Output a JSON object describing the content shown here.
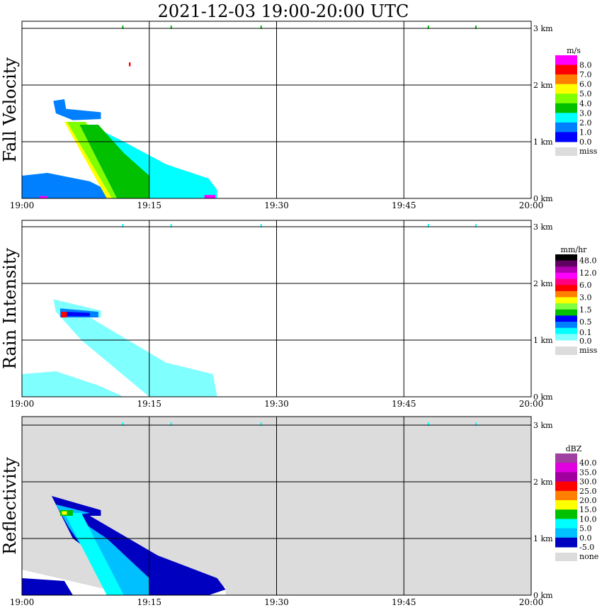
{
  "chart_data": [
    {
      "type": "heatmap",
      "title": "2021-12-03   19:00-20:00 UTC",
      "ylabel": "Fall Velocity",
      "unit": "m/s",
      "x_ticks": [
        "19:00",
        "19:15",
        "19:30",
        "19:45",
        "20:00"
      ],
      "y_ticks": [
        "0 km",
        "1 km",
        "2 km",
        "3 km"
      ],
      "xlim_minutes": [
        0,
        60
      ],
      "ylim_km": [
        0,
        3.1
      ],
      "legend": {
        "labels": [
          "8.0",
          "7.0",
          "6.0",
          "5.0",
          "4.0",
          "3.0",
          "2.0",
          "1.0",
          "0.0"
        ],
        "colors": [
          "#ff00ff",
          "#ff0000",
          "#ff8000",
          "#ffff00",
          "#80ff00",
          "#00c000",
          "#00ffff",
          "#0080ff",
          "#0000ff"
        ],
        "miss_label": "miss",
        "miss_color": "#dcdcdc"
      },
      "background": "#ffffff",
      "regions": [
        {
          "color": "#0080ff",
          "points": [
            [
              0,
              0
            ],
            [
              0,
              0.4
            ],
            [
              3,
              0.45
            ],
            [
              8,
              0.3
            ],
            [
              10,
              0.15
            ],
            [
              12,
              0
            ]
          ]
        },
        {
          "color": "#0080ff",
          "points": [
            [
              3.7,
              1.72
            ],
            [
              5,
              1.75
            ],
            [
              5.2,
              1.58
            ],
            [
              9.3,
              1.52
            ],
            [
              9.3,
              1.4
            ],
            [
              6,
              1.38
            ],
            [
              4,
              1.5
            ]
          ]
        },
        {
          "color": "#00ffff",
          "points": [
            [
              8,
              1.3
            ],
            [
              12,
              1.0
            ],
            [
              17,
              0.6
            ],
            [
              22,
              0.35
            ],
            [
              23,
              0.15
            ],
            [
              23,
              0
            ],
            [
              12,
              0
            ],
            [
              8,
              1.0
            ]
          ]
        },
        {
          "color": "#ffff00",
          "points": [
            [
              5,
              1.35
            ],
            [
              6.5,
              1.35
            ],
            [
              13,
              0
            ],
            [
              10,
              0
            ]
          ]
        },
        {
          "color": "#80ff00",
          "points": [
            [
              5.3,
              1.35
            ],
            [
              7.5,
              1.35
            ],
            [
              13.5,
              0
            ],
            [
              10.6,
              0
            ]
          ]
        },
        {
          "color": "#00c000",
          "points": [
            [
              6.8,
              1.3
            ],
            [
              9,
              1.3
            ],
            [
              12,
              0.8
            ],
            [
              15,
              0.4
            ],
            [
              15,
              0
            ],
            [
              11.2,
              0
            ]
          ]
        },
        {
          "color": "#ff00ff",
          "points": [
            [
              2,
              0
            ],
            [
              3,
              0
            ],
            [
              3,
              0.04
            ],
            [
              2,
              0.04
            ]
          ]
        },
        {
          "color": "#ff00ff",
          "points": [
            [
              21.5,
              0
            ],
            [
              22.8,
              0
            ],
            [
              22.8,
              0.06
            ],
            [
              21.5,
              0.06
            ]
          ]
        },
        {
          "color": "#ff0000",
          "points": [
            [
              12.6,
              2.33
            ],
            [
              12.8,
              2.33
            ],
            [
              12.8,
              2.4
            ],
            [
              12.6,
              2.4
            ]
          ]
        }
      ]
    },
    {
      "type": "heatmap",
      "ylabel": "Rain Intensity",
      "unit": "mm/hr",
      "x_ticks": [
        "19:00",
        "19:15",
        "19:30",
        "19:45",
        "20:00"
      ],
      "y_ticks": [
        "0 km",
        "1 km",
        "2 km",
        "3 km"
      ],
      "xlim_minutes": [
        0,
        60
      ],
      "ylim_km": [
        0,
        3.1
      ],
      "legend": {
        "labels": [
          "48.0",
          "12.0",
          "6.0",
          "3.0",
          "1.5",
          "0.5",
          "0.1",
          "0.0"
        ],
        "colors": [
          "#000000",
          "#600060",
          "#b000b0",
          "#ff00ff",
          "#ff0080",
          "#ff0000",
          "#ff8000",
          "#ffff00",
          "#80ff40",
          "#00c000",
          "#0000ff",
          "#0080ff",
          "#00ffff",
          "#80ffff"
        ],
        "miss_label": "miss",
        "miss_color": "#dcdcdc"
      },
      "background": "#ffffff",
      "regions": [
        {
          "color": "#80ffff",
          "points": [
            [
              0,
              0
            ],
            [
              0,
              0.4
            ],
            [
              4,
              0.45
            ],
            [
              9,
              0.2
            ],
            [
              12,
              0
            ]
          ]
        },
        {
          "color": "#80ffff",
          "points": [
            [
              3.7,
              1.72
            ],
            [
              9.3,
              1.52
            ],
            [
              9.3,
              1.4
            ],
            [
              8,
              1.4
            ],
            [
              17,
              0.6
            ],
            [
              22.5,
              0.4
            ],
            [
              23,
              0
            ],
            [
              15,
              0
            ],
            [
              7,
              1
            ],
            [
              4,
              1.5
            ]
          ]
        },
        {
          "color": "#0080ff",
          "points": [
            [
              4.5,
              1.56
            ],
            [
              9,
              1.5
            ],
            [
              9,
              1.4
            ],
            [
              4.5,
              1.4
            ]
          ]
        },
        {
          "color": "#0000ff",
          "points": [
            [
              5,
              1.5
            ],
            [
              8,
              1.48
            ],
            [
              8,
              1.42
            ],
            [
              5,
              1.42
            ]
          ]
        },
        {
          "color": "#ff0000",
          "points": [
            [
              4.6,
              1.5
            ],
            [
              5.3,
              1.5
            ],
            [
              5.3,
              1.4
            ],
            [
              4.6,
              1.4
            ]
          ]
        }
      ]
    },
    {
      "type": "heatmap",
      "ylabel": "Reflectivity",
      "unit": "dBZ",
      "x_ticks": [
        "19:00",
        "19:15",
        "19:30",
        "19:45",
        "20:00"
      ],
      "y_ticks": [
        "0 km",
        "1 km",
        "2 km",
        "3 km"
      ],
      "xlim_minutes": [
        0,
        60
      ],
      "ylim_km": [
        0,
        3.1
      ],
      "legend": {
        "labels": [
          "40.0",
          "35.0",
          "30.0",
          "25.0",
          "20.0",
          "15.0",
          "10.0",
          "5.0",
          "0.0",
          "-5.0"
        ],
        "colors": [
          "#a040a0",
          "#e000e0",
          "#a000a0",
          "#ff0000",
          "#ff8000",
          "#ffff00",
          "#00c000",
          "#00ffff",
          "#00c0ff",
          "#0000c0"
        ],
        "miss_label": "none",
        "miss_color": "#dcdcdc"
      },
      "background": "#dcdcdc",
      "regions": [
        {
          "color": "#ffffff",
          "points": [
            [
              0,
              0
            ],
            [
              0,
              0.45
            ],
            [
              10,
              0.1
            ],
            [
              24,
              0.15
            ],
            [
              24,
              0
            ]
          ]
        },
        {
          "color": "#0000c0",
          "points": [
            [
              3.5,
              1.75
            ],
            [
              9.3,
              1.5
            ],
            [
              9.3,
              1.4
            ],
            [
              8,
              1.4
            ],
            [
              16,
              0.7
            ],
            [
              23,
              0.3
            ],
            [
              24,
              0.1
            ],
            [
              22,
              0
            ],
            [
              15,
              0
            ],
            [
              6,
              1
            ]
          ]
        },
        {
          "color": "#0000c0",
          "points": [
            [
              0,
              0
            ],
            [
              0,
              0.3
            ],
            [
              5,
              0.25
            ],
            [
              6,
              0
            ]
          ]
        },
        {
          "color": "#00c0ff",
          "points": [
            [
              4,
              1.6
            ],
            [
              8,
              1.45
            ],
            [
              6,
              1.4
            ],
            [
              10,
              1.0
            ],
            [
              15,
              0.3
            ],
            [
              15,
              0
            ],
            [
              11,
              0
            ],
            [
              5.5,
              1.2
            ]
          ]
        },
        {
          "color": "#00ffff",
          "points": [
            [
              5,
              1.45
            ],
            [
              7,
              1.45
            ],
            [
              12,
              0
            ],
            [
              10,
              0
            ]
          ]
        },
        {
          "color": "#00c000",
          "points": [
            [
              4.5,
              1.5
            ],
            [
              6,
              1.5
            ],
            [
              6,
              1.4
            ],
            [
              4.5,
              1.4
            ]
          ]
        },
        {
          "color": "#ffff00",
          "points": [
            [
              4.7,
              1.48
            ],
            [
              5.3,
              1.48
            ],
            [
              5.3,
              1.42
            ],
            [
              4.7,
              1.42
            ]
          ]
        }
      ]
    }
  ]
}
